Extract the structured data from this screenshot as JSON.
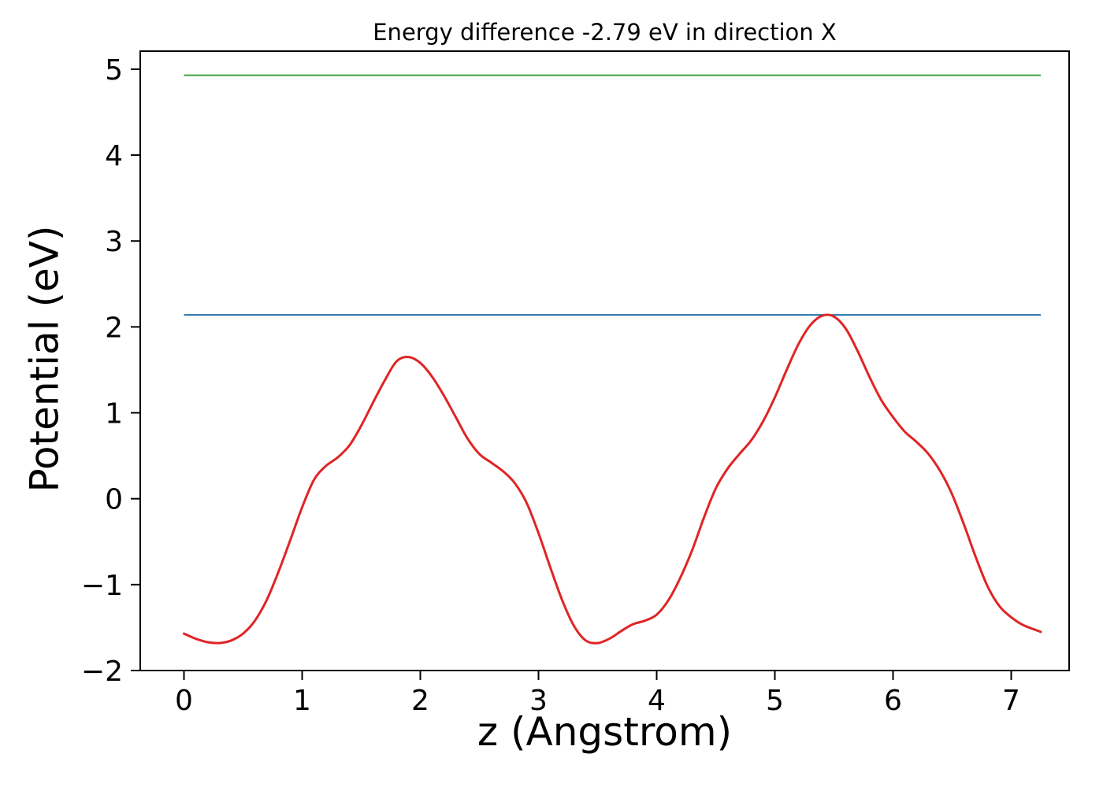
{
  "figure": {
    "background": "#ffffff",
    "axis_color": "#000000",
    "text_color": "#000000"
  },
  "chart_data": {
    "type": "line",
    "title": "Energy difference -2.79 eV in direction X",
    "xlabel": "z (Angstrom)",
    "ylabel": "Potential (eV)",
    "xlim": [
      -0.37,
      7.49
    ],
    "ylim": [
      -2.0,
      5.21
    ],
    "grid": false,
    "legend": "none",
    "x_ticks": {
      "values": [
        0,
        1,
        2,
        3,
        4,
        5,
        6,
        7
      ],
      "labels": [
        "0",
        "1",
        "2",
        "3",
        "4",
        "5",
        "6",
        "7"
      ]
    },
    "y_ticks": {
      "values": [
        -2,
        -1,
        0,
        1,
        2,
        3,
        4,
        5
      ],
      "labels": [
        "−2",
        "−1",
        "0",
        "1",
        "2",
        "3",
        "4",
        "5"
      ]
    },
    "hlines": [
      {
        "name": "upper-reference-line",
        "y": 4.93,
        "x_start": 0.0,
        "x_end": 7.25,
        "color": "#3fa03f",
        "width": 2
      },
      {
        "name": "lower-reference-line",
        "y": 2.14,
        "x_start": 0.0,
        "x_end": 7.25,
        "color": "#2471a8",
        "width": 2
      }
    ],
    "series": [
      {
        "name": "potential-curve",
        "color": "#e02424",
        "width": 3,
        "x": [
          0.0,
          0.1,
          0.2,
          0.3,
          0.4,
          0.5,
          0.6,
          0.7,
          0.8,
          0.9,
          1.0,
          1.1,
          1.2,
          1.3,
          1.4,
          1.5,
          1.6,
          1.7,
          1.8,
          1.9,
          2.0,
          2.1,
          2.2,
          2.3,
          2.4,
          2.5,
          2.6,
          2.7,
          2.8,
          2.9,
          3.0,
          3.1,
          3.2,
          3.3,
          3.4,
          3.5,
          3.6,
          3.7,
          3.8,
          3.9,
          4.0,
          4.1,
          4.2,
          4.3,
          4.4,
          4.5,
          4.6,
          4.7,
          4.8,
          4.9,
          5.0,
          5.1,
          5.2,
          5.3,
          5.4,
          5.5,
          5.6,
          5.7,
          5.8,
          5.9,
          6.0,
          6.1,
          6.2,
          6.3,
          6.4,
          6.5,
          6.6,
          6.7,
          6.8,
          6.9,
          7.0,
          7.1,
          7.25
        ],
        "y": [
          -1.57,
          -1.63,
          -1.67,
          -1.68,
          -1.65,
          -1.57,
          -1.42,
          -1.18,
          -0.85,
          -0.48,
          -0.1,
          0.22,
          0.38,
          0.48,
          0.62,
          0.85,
          1.12,
          1.38,
          1.6,
          1.65,
          1.58,
          1.42,
          1.2,
          0.95,
          0.7,
          0.52,
          0.42,
          0.32,
          0.18,
          -0.05,
          -0.4,
          -0.8,
          -1.18,
          -1.48,
          -1.65,
          -1.68,
          -1.63,
          -1.54,
          -1.46,
          -1.42,
          -1.35,
          -1.18,
          -0.92,
          -0.6,
          -0.22,
          0.12,
          0.35,
          0.52,
          0.68,
          0.9,
          1.18,
          1.5,
          1.8,
          2.02,
          2.13,
          2.12,
          1.98,
          1.72,
          1.42,
          1.15,
          0.95,
          0.78,
          0.66,
          0.52,
          0.32,
          0.05,
          -0.3,
          -0.68,
          -1.02,
          -1.25,
          -1.38,
          -1.47,
          -1.55
        ]
      }
    ]
  }
}
